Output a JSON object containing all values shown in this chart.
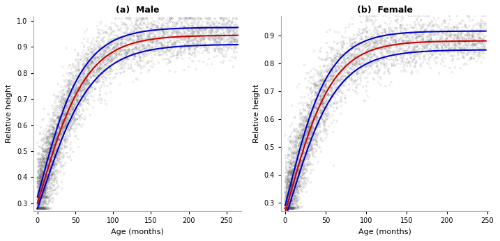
{
  "title_a": "(a)  Male",
  "title_b": "(b)  Female",
  "xlabel": "Age (months)",
  "ylabel": "Relative height",
  "xlim_a": [
    -5,
    270
  ],
  "xlim_b": [
    -5,
    252
  ],
  "ylim_a": [
    0.27,
    1.02
  ],
  "ylim_b": [
    0.27,
    0.97
  ],
  "xticks_a": [
    0,
    50,
    100,
    150,
    200,
    250
  ],
  "xticks_b": [
    0,
    50,
    100,
    150,
    200,
    250
  ],
  "yticks_a": [
    0.3,
    0.4,
    0.5,
    0.6,
    0.7,
    0.8,
    0.9,
    1.0
  ],
  "yticks_b": [
    0.3,
    0.4,
    0.5,
    0.6,
    0.7,
    0.8,
    0.9
  ],
  "scatter_color": "#555555",
  "scatter_alpha": 0.25,
  "scatter_size": 3,
  "red_color": "#cc0000",
  "blue_color": "#0000cc",
  "line_width": 1.5,
  "seed_male": 7,
  "seed_female": 13,
  "n_points_male": 5000,
  "n_points_female": 4500,
  "background_color": "#ffffff",
  "panel_bg": "#ffffff"
}
